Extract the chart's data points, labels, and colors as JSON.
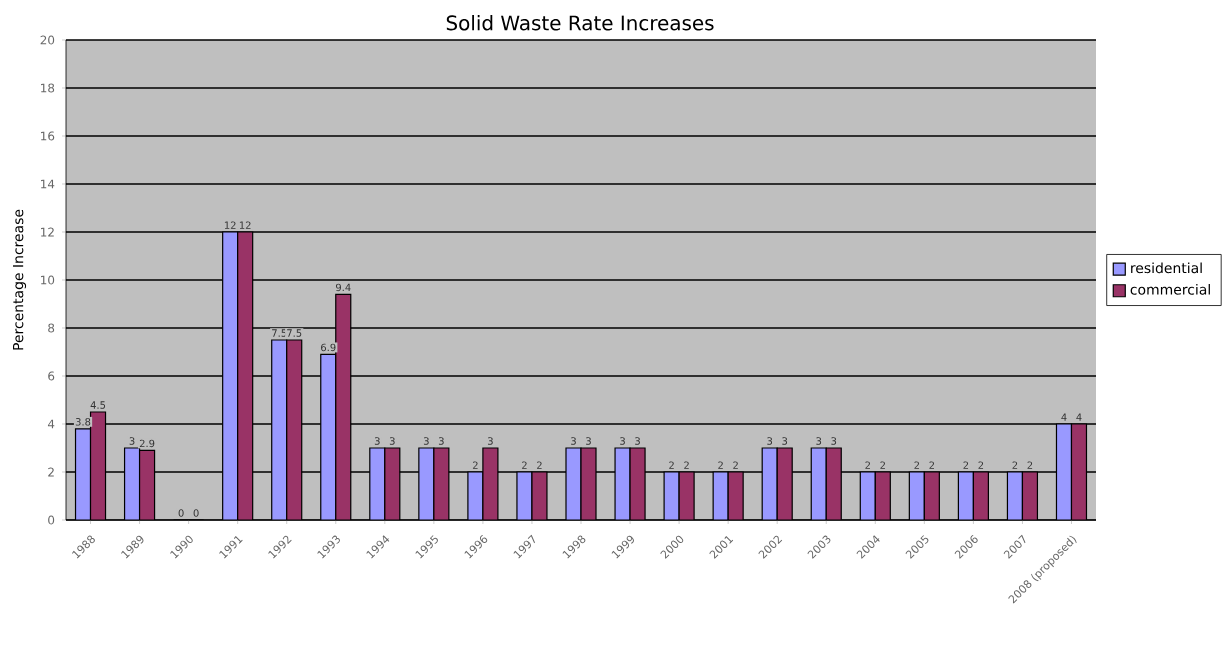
{
  "chart_data": {
    "type": "bar",
    "title": "Solid Waste Rate Increases",
    "ylabel": "Percentage Increase",
    "categories": [
      "1988",
      "1989",
      "1990",
      "1991",
      "1992",
      "1993",
      "1994",
      "1995",
      "1996",
      "1997",
      "1998",
      "1999",
      "2000",
      "2001",
      "2002",
      "2003",
      "2004",
      "2005",
      "2006",
      "2007",
      "2008 (proposed)"
    ],
    "series": [
      {
        "name": "residential",
        "color": "#9999ff",
        "values": [
          3.8,
          3,
          0,
          12,
          7.5,
          6.9,
          3,
          3,
          2,
          2,
          3,
          3,
          2,
          2,
          3,
          3,
          2,
          2,
          2,
          2,
          4
        ]
      },
      {
        "name": "commercial",
        "color": "#993366",
        "values": [
          4.5,
          2.9,
          0,
          12,
          7.5,
          9.4,
          3,
          3,
          3,
          2,
          3,
          3,
          2,
          2,
          3,
          3,
          2,
          2,
          2,
          2,
          4
        ]
      }
    ],
    "ylim": [
      0,
      20
    ],
    "yticks": [
      0,
      2,
      4,
      6,
      8,
      10,
      12,
      14,
      16,
      18,
      20
    ],
    "grid": "y",
    "legend": "right",
    "data_labels": true
  }
}
